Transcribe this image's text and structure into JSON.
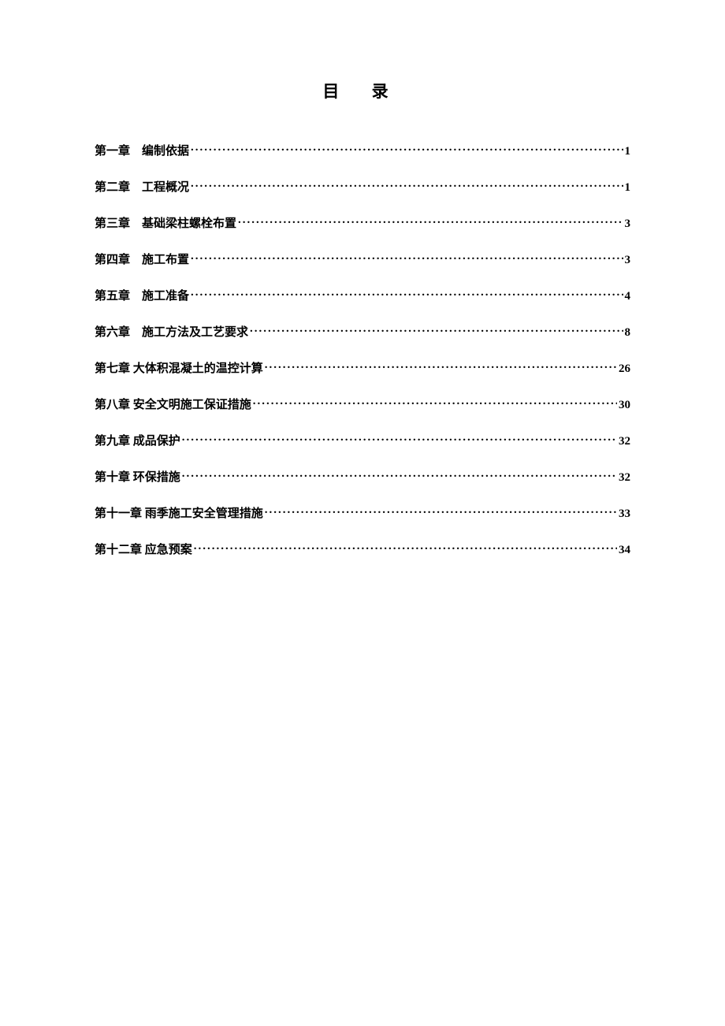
{
  "toc": {
    "title": "目 录",
    "entries": [
      {
        "label": "第一章　编制依据",
        "page": "1"
      },
      {
        "label": "第二章　工程概况",
        "page": "1"
      },
      {
        "label": "第三章　基础梁柱螺栓布置",
        "page": "3"
      },
      {
        "label": "第四章　施工布置",
        "page": "3"
      },
      {
        "label": "第五章　施工准备",
        "page": "4"
      },
      {
        "label": "第六章　施工方法及工艺要求",
        "page": "8"
      },
      {
        "label": "第七章  大体积混凝土的温控计算",
        "page": "26"
      },
      {
        "label": "第八章  安全文明施工保证措施",
        "page": "30"
      },
      {
        "label": "第九章  成品保护",
        "page": "32"
      },
      {
        "label": "第十章  环保措施",
        "page": "32"
      },
      {
        "label": "第十一章  雨季施工安全管理措施",
        "page": "33"
      },
      {
        "label": "第十二章  应急预案",
        "page": "34"
      }
    ]
  }
}
